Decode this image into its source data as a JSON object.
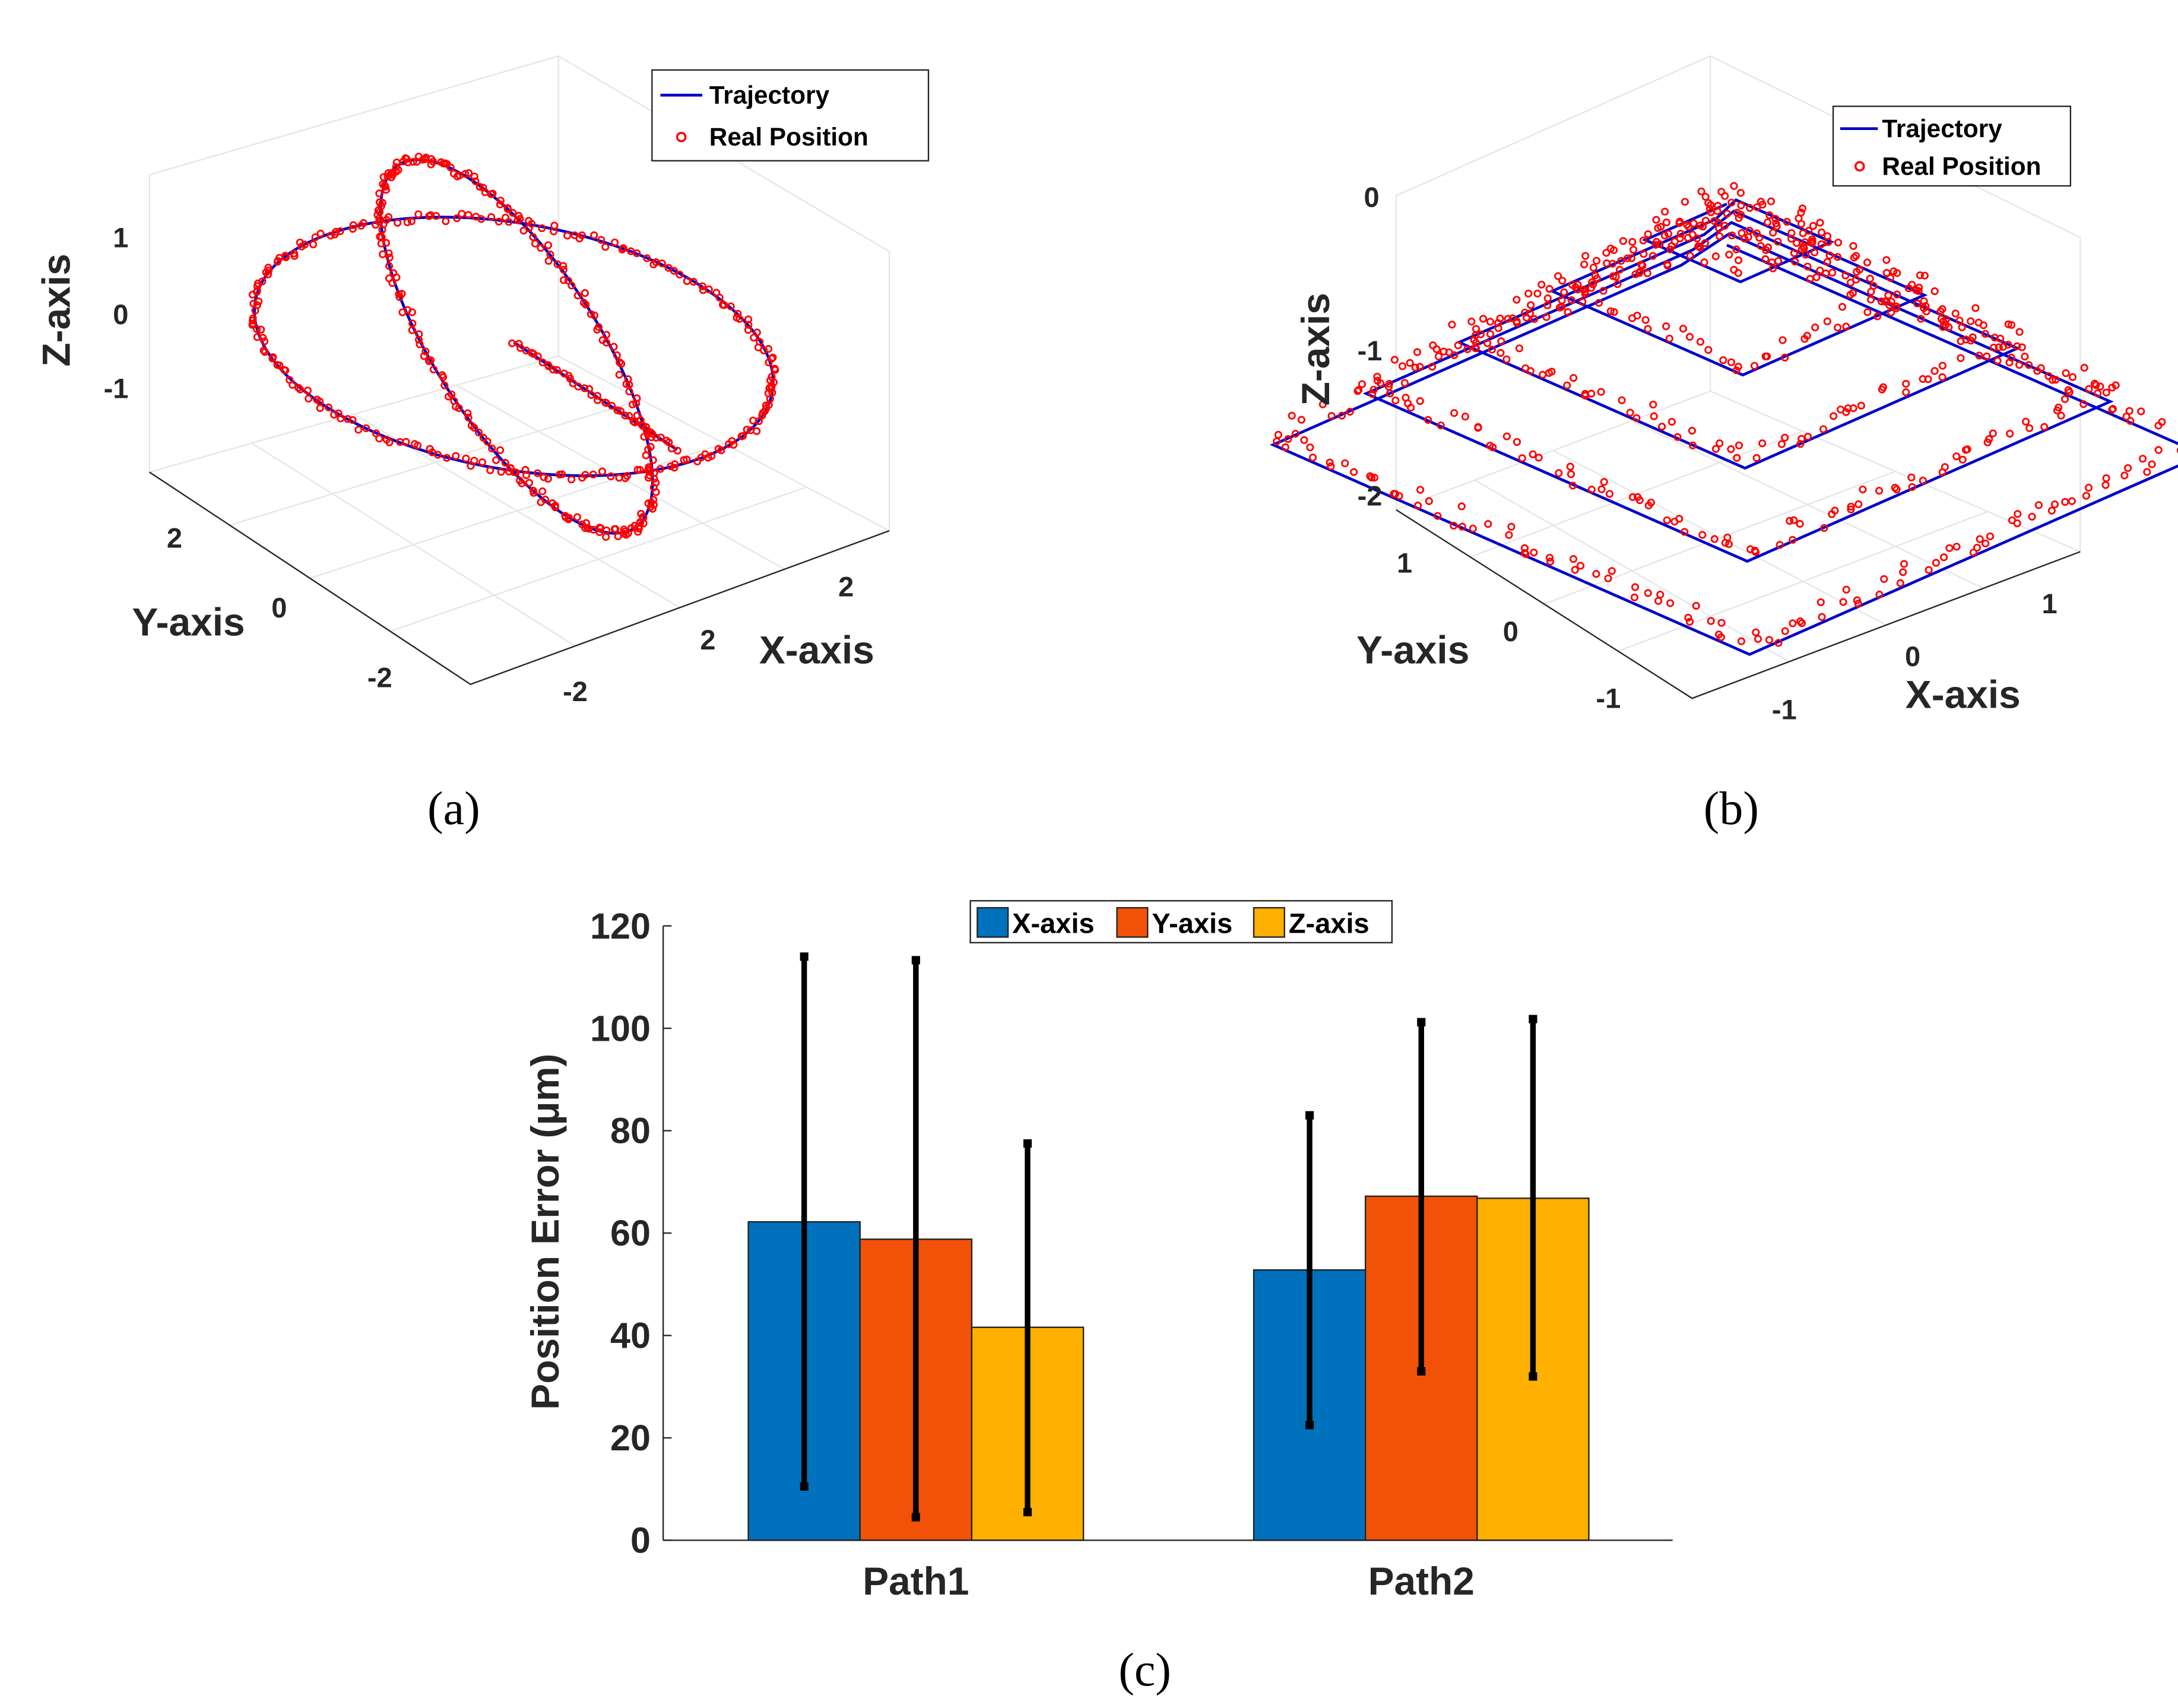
{
  "chart_data": [
    {
      "type": "line",
      "panel": "(a)",
      "projection": "3d",
      "xlabel": "X-axis",
      "ylabel": "Y-axis",
      "zlabel": "Z-axis",
      "xticks": [
        "-2",
        "2",
        "2"
      ],
      "yticks": [
        "2",
        "0",
        "-2"
      ],
      "zticks": [
        "1",
        "0",
        "-1"
      ],
      "legend": [
        "Trajectory",
        "Real Position"
      ],
      "legend_position": "top-right",
      "series": [
        {
          "name": "Trajectory",
          "style": "line",
          "color": "#0000CD"
        },
        {
          "name": "Real Position",
          "style": "circle markers",
          "color": "#FF0000"
        }
      ]
    },
    {
      "type": "line",
      "panel": "(b)",
      "projection": "3d",
      "xlabel": "X-axis",
      "ylabel": "Y-axis",
      "zlabel": "Z-axis",
      "xticks": [
        "-1",
        "0",
        "1"
      ],
      "yticks": [
        "1",
        "0",
        "-1"
      ],
      "zticks": [
        "0",
        "-1",
        "-2"
      ],
      "legend": [
        "Trajectory",
        "Real Position"
      ],
      "legend_position": "top-right",
      "series": [
        {
          "name": "Trajectory",
          "style": "line",
          "color": "#0000CD"
        },
        {
          "name": "Real Position",
          "style": "circle markers",
          "color": "#FF0000"
        }
      ]
    },
    {
      "type": "bar",
      "panel": "(c)",
      "categories": [
        "Path1",
        "Path2"
      ],
      "ylabel": "Position Error (μm)",
      "ylim": [
        0,
        120
      ],
      "yticks": [
        "0",
        "20",
        "40",
        "60",
        "80",
        "100",
        "120"
      ],
      "legend_position": "top-center",
      "series": [
        {
          "name": "X-axis",
          "color": "#0072BD",
          "values": [
            62.2,
            52.8
          ],
          "err_low": [
            10.5,
            22.5
          ],
          "err_high": [
            114,
            83
          ]
        },
        {
          "name": "Y-axis",
          "color": "#F25208",
          "values": [
            58.8,
            67.2
          ],
          "err_low": [
            4.5,
            33
          ],
          "err_high": [
            113.3,
            101.2
          ]
        },
        {
          "name": "Z-axis",
          "color": "#FFB000",
          "values": [
            41.6,
            66.8
          ],
          "err_low": [
            5.5,
            32
          ],
          "err_high": [
            77.5,
            101.8
          ]
        }
      ]
    }
  ]
}
